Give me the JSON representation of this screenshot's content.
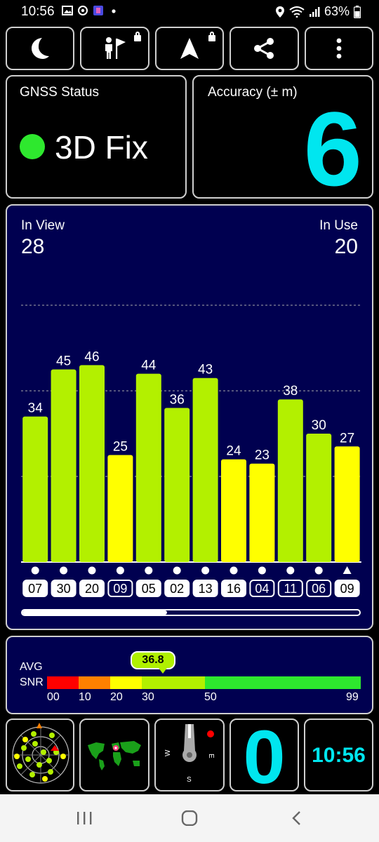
{
  "status_bar": {
    "time": "10:56",
    "battery": "63%",
    "icons": [
      "image-icon",
      "at-sign-icon",
      "app-icon",
      "dot-icon",
      "location-icon",
      "wifi-icon",
      "signal-icon",
      "battery-icon"
    ]
  },
  "toolbar": {
    "buttons": [
      {
        "name": "night-mode-button",
        "icon": "moon-icon",
        "locked": false
      },
      {
        "name": "person-flag-button",
        "icon": "person-flag-icon",
        "locked": true
      },
      {
        "name": "navigation-button",
        "icon": "navigation-arrow-icon",
        "locked": true
      },
      {
        "name": "share-button",
        "icon": "share-icon",
        "locked": false
      },
      {
        "name": "more-menu-button",
        "icon": "more-vertical-icon",
        "locked": false
      }
    ]
  },
  "gnss_status": {
    "title": "GNSS Status",
    "value": "3D Fix",
    "status_color": "#2ee82e"
  },
  "accuracy": {
    "title": "Accuracy (± m)",
    "value": "6",
    "value_color": "#00e6ef"
  },
  "satellites": {
    "in_view_label": "In View",
    "in_view": "28",
    "in_use_label": "In Use",
    "in_use": "20",
    "scroll_position": 0.43
  },
  "chart_data": {
    "type": "bar",
    "categories": [
      "07",
      "30",
      "20",
      "09",
      "05",
      "02",
      "13",
      "16",
      "04",
      "11",
      "06",
      "09"
    ],
    "values": [
      34,
      45,
      46,
      25,
      44,
      36,
      43,
      24,
      23,
      38,
      30,
      27
    ],
    "boxed": [
      false,
      false,
      false,
      true,
      false,
      false,
      false,
      false,
      true,
      true,
      true,
      false
    ],
    "markers": [
      "circle",
      "circle",
      "circle",
      "circle",
      "circle",
      "circle",
      "circle",
      "circle",
      "circle",
      "circle",
      "circle",
      "triangle"
    ],
    "ylim": [
      0,
      60
    ],
    "gridlines": [
      20,
      40,
      60
    ],
    "colors": {
      "strong": "#b3f000",
      "weak": "#ffff00"
    },
    "threshold": 30
  },
  "snr": {
    "avg_label": "AVG",
    "snr_label": "SNR",
    "avg_value": "36.8",
    "ticks": [
      "00",
      "10",
      "20",
      "30",
      "50",
      "99"
    ],
    "colors": [
      "#ff0000",
      "#ff8000",
      "#ffff00",
      "#b3f000",
      "#2ee82e"
    ]
  },
  "tiles": {
    "big_value": "0",
    "clock": "10:56",
    "compass_labels": {
      "w": "W",
      "e": "E",
      "s": "S"
    }
  },
  "nav": {
    "items": [
      "recent-apps-icon",
      "home-icon",
      "back-icon"
    ]
  }
}
